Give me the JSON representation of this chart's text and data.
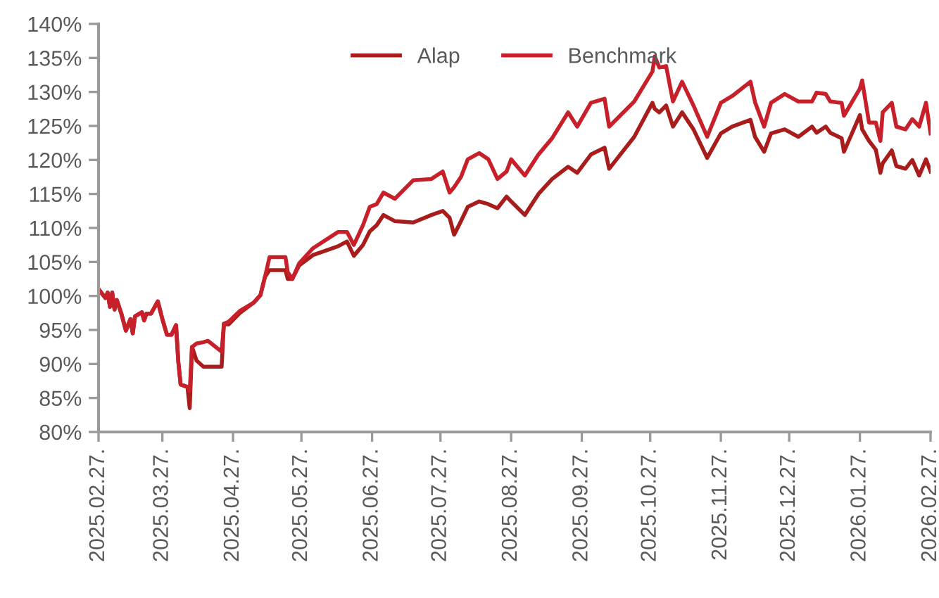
{
  "chart_data": {
    "type": "line",
    "x": [
      "2025-02-27",
      "2025-03-02",
      "2025-03-03",
      "2025-03-04",
      "2025-03-05",
      "2025-03-06",
      "2025-03-07",
      "2025-03-09",
      "2025-03-11",
      "2025-03-13",
      "2025-03-14",
      "2025-03-15",
      "2025-03-18",
      "2025-03-19",
      "2025-03-20",
      "2025-03-22",
      "2025-03-25",
      "2025-03-27",
      "2025-03-29",
      "2025-03-31",
      "2025-04-02",
      "2025-04-03",
      "2025-04-04",
      "2025-04-07",
      "2025-04-08",
      "2025-04-09",
      "2025-04-11",
      "2025-04-14",
      "2025-04-16",
      "2025-04-22",
      "2025-04-23",
      "2025-04-25",
      "2025-04-30",
      "2025-05-06",
      "2025-05-09",
      "2025-05-11",
      "2025-05-13",
      "2025-05-20",
      "2025-05-21",
      "2025-05-23",
      "2025-05-26",
      "2025-06-01",
      "2025-06-12",
      "2025-06-16",
      "2025-06-19",
      "2025-06-23",
      "2025-06-26",
      "2025-06-29",
      "2025-07-02",
      "2025-07-07",
      "2025-07-15",
      "2025-07-23",
      "2025-07-28",
      "2025-07-31",
      "2025-08-02",
      "2025-08-05",
      "2025-08-08",
      "2025-08-13",
      "2025-08-17",
      "2025-08-21",
      "2025-08-25",
      "2025-08-27",
      "2025-09-02",
      "2025-09-08",
      "2025-09-14",
      "2025-09-21",
      "2025-09-25",
      "2025-10-01",
      "2025-10-07",
      "2025-10-09",
      "2025-10-20",
      "2025-10-28",
      "2025-10-29",
      "2025-10-31",
      "2025-11-03",
      "2025-11-06",
      "2025-11-10",
      "2025-11-15",
      "2025-11-21",
      "2025-11-27",
      "2025-12-02",
      "2025-12-10",
      "2025-12-12",
      "2025-12-16",
      "2025-12-19",
      "2025-12-25",
      "2025-12-31",
      "2026-01-06",
      "2026-01-08",
      "2026-01-12",
      "2026-01-14",
      "2026-01-19",
      "2026-01-20",
      "2026-01-27",
      "2026-01-28",
      "2026-01-31",
      "2026-02-03",
      "2026-02-05",
      "2026-02-06",
      "2026-02-10",
      "2026-02-12",
      "2026-02-16",
      "2026-02-19",
      "2026-02-22",
      "2026-02-25",
      "2026-02-27"
    ],
    "series": [
      {
        "name": "Alap",
        "color": "#a81c1c",
        "values": [
          101.0,
          99.7,
          100.5,
          98.4,
          100.5,
          98.0,
          99.4,
          97.4,
          94.9,
          96.6,
          94.5,
          97.0,
          97.6,
          96.4,
          97.4,
          97.4,
          99.2,
          96.6,
          94.3,
          94.3,
          95.7,
          90.3,
          87.0,
          86.6,
          83.5,
          92.5,
          90.5,
          89.6,
          89.6,
          89.6,
          95.9,
          95.8,
          97.5,
          99.0,
          100.1,
          102.8,
          103.8,
          103.8,
          102.5,
          102.5,
          104.5,
          106.0,
          107.3,
          108.0,
          105.9,
          107.5,
          109.5,
          110.4,
          111.9,
          111.0,
          110.8,
          111.9,
          112.5,
          111.5,
          109.0,
          111.0,
          113.1,
          113.9,
          113.5,
          112.9,
          114.6,
          113.9,
          111.9,
          115.0,
          117.2,
          119.0,
          118.1,
          120.8,
          121.8,
          118.7,
          123.4,
          128.4,
          127.5,
          127.0,
          128.0,
          124.9,
          127.0,
          124.5,
          120.3,
          123.9,
          124.9,
          125.9,
          123.4,
          121.2,
          123.9,
          124.5,
          123.4,
          124.9,
          124.0,
          124.9,
          124.0,
          123.2,
          121.2,
          126.6,
          124.5,
          122.8,
          121.5,
          118.1,
          119.5,
          121.4,
          119.1,
          118.7,
          120.0,
          117.7,
          120.1,
          118.3
        ]
      },
      {
        "name": "Benchmark",
        "color": "#c8202a",
        "values": [
          101.0,
          99.7,
          100.5,
          98.4,
          100.5,
          98.0,
          99.4,
          97.4,
          94.9,
          96.6,
          94.5,
          97.0,
          97.6,
          96.4,
          97.4,
          97.4,
          99.2,
          96.6,
          94.3,
          94.3,
          95.7,
          90.3,
          87.0,
          86.6,
          86.0,
          92.5,
          93.0,
          93.2,
          93.4,
          91.8,
          95.9,
          96.2,
          97.8,
          99.0,
          100.1,
          102.8,
          105.7,
          105.7,
          103.5,
          102.5,
          104.8,
          107.0,
          109.4,
          109.4,
          107.5,
          110.4,
          113.1,
          113.5,
          115.2,
          114.3,
          117.0,
          117.2,
          118.3,
          115.2,
          116.0,
          117.5,
          120.1,
          121.0,
          120.1,
          117.2,
          118.3,
          120.1,
          117.7,
          120.8,
          123.2,
          127.0,
          124.9,
          128.4,
          129.0,
          124.9,
          128.6,
          133.0,
          135.2,
          133.6,
          133.8,
          128.6,
          131.5,
          128.0,
          123.4,
          128.4,
          129.4,
          131.5,
          128.5,
          124.9,
          128.4,
          129.7,
          128.6,
          128.6,
          129.9,
          129.7,
          128.6,
          128.4,
          126.5,
          130.5,
          131.7,
          125.5,
          125.5,
          122.8,
          127.0,
          128.4,
          124.9,
          124.5,
          126.0,
          124.9,
          128.4,
          123.9
        ]
      }
    ],
    "xlim": [
      "2025-02-27",
      "2026-02-27"
    ],
    "xticks": [
      {
        "value": "2025-02-27",
        "label": "2025.02.27."
      },
      {
        "value": "2025-03-27",
        "label": "2025.03.27."
      },
      {
        "value": "2025-04-27",
        "label": "2025.04.27."
      },
      {
        "value": "2025-05-27",
        "label": "2025.05.27."
      },
      {
        "value": "2025-06-27",
        "label": "2025.06.27."
      },
      {
        "value": "2025-07-27",
        "label": "2025.07.27."
      },
      {
        "value": "2025-08-27",
        "label": "2025.08.27."
      },
      {
        "value": "2025-09-27",
        "label": "2025.09.27."
      },
      {
        "value": "2025-10-27",
        "label": "2025.10.27."
      },
      {
        "value": "2025-11-27",
        "label": "2025.11.27."
      },
      {
        "value": "2025-12-27",
        "label": "2025.12.27."
      },
      {
        "value": "2026-01-27",
        "label": "2026.01.27."
      },
      {
        "value": "2026-02-27",
        "label": "2026.02.27."
      }
    ],
    "ylim": [
      80,
      140
    ],
    "yticks": [
      {
        "value": 80,
        "label": "80%"
      },
      {
        "value": 85,
        "label": "85%"
      },
      {
        "value": 90,
        "label": "90%"
      },
      {
        "value": 95,
        "label": "95%"
      },
      {
        "value": 100,
        "label": "100%"
      },
      {
        "value": 105,
        "label": "105%"
      },
      {
        "value": 110,
        "label": "110%"
      },
      {
        "value": 115,
        "label": "115%"
      },
      {
        "value": 120,
        "label": "120%"
      },
      {
        "value": 125,
        "label": "125%"
      },
      {
        "value": 130,
        "label": "130%"
      },
      {
        "value": 135,
        "label": "135%"
      },
      {
        "value": 140,
        "label": "140%"
      }
    ],
    "legend": "top",
    "marker": "none",
    "line_style": "solid"
  }
}
